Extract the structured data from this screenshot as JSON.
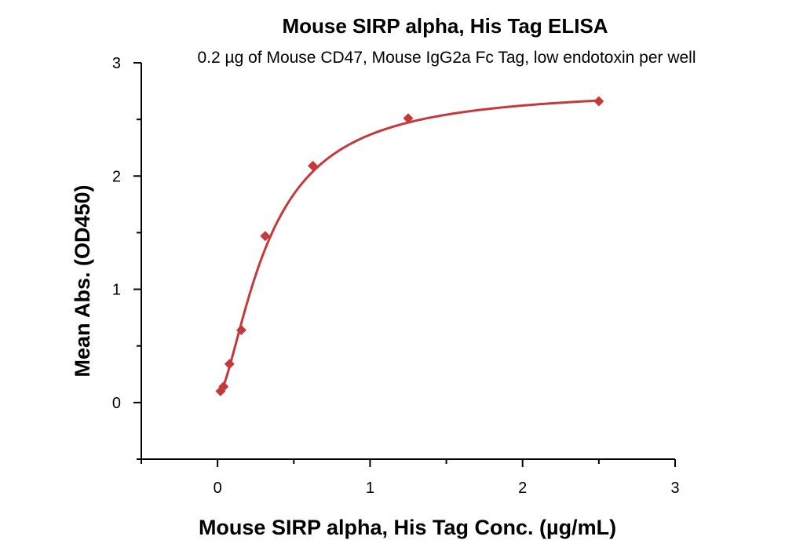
{
  "chart_data": {
    "type": "scatter",
    "title": "Mouse SIRP alpha, His Tag ELISA",
    "subtitle": "0.2 µg of Mouse CD47, Mouse IgG2a Fc Tag, low endotoxin per well",
    "xlabel": "Mouse SIRP alpha, His Tag Conc. (µg/mL)",
    "ylabel": "Mean Abs. (OD450)",
    "xlim": [
      -0.5,
      3
    ],
    "ylim": [
      -0.5,
      3
    ],
    "x_ticks": [
      0,
      1,
      2,
      3
    ],
    "y_ticks": [
      0,
      1,
      2,
      3
    ],
    "grid": false,
    "colors": {
      "series": "#c43a3a",
      "axis": "#000000"
    },
    "series": [
      {
        "marker": "diamond",
        "fit": "4PL",
        "x": [
          0.0195,
          0.039,
          0.078,
          0.156,
          0.3125,
          0.625,
          1.25,
          2.5
        ],
        "y": [
          0.1,
          0.14,
          0.34,
          0.64,
          1.47,
          2.09,
          2.51,
          2.66
        ]
      }
    ]
  }
}
